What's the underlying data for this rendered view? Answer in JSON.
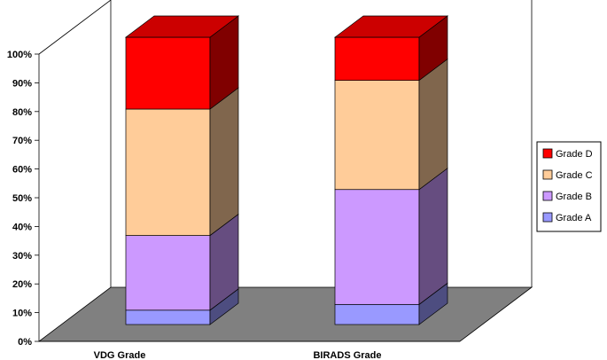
{
  "chart_data": {
    "type": "bar",
    "stacked": true,
    "categories": [
      "VDG Grade",
      "BIRADS Grade"
    ],
    "series": [
      {
        "name": "Grade A",
        "values": [
          5,
          7
        ],
        "color": "#9999ff"
      },
      {
        "name": "Grade B",
        "values": [
          26,
          40
        ],
        "color": "#cc99ff"
      },
      {
        "name": "Grade C",
        "values": [
          44,
          38
        ],
        "color": "#ffcc99"
      },
      {
        "name": "Grade D",
        "values": [
          25,
          15
        ],
        "color": "#ff0000"
      }
    ],
    "y_ticks": [
      "0%",
      "10%",
      "20%",
      "30%",
      "40%",
      "50%",
      "60%",
      "70%",
      "80%",
      "90%",
      "100%"
    ],
    "ylim": [
      0,
      100
    ],
    "legend_position": "right",
    "grid": false,
    "floor_color": "#808080"
  }
}
